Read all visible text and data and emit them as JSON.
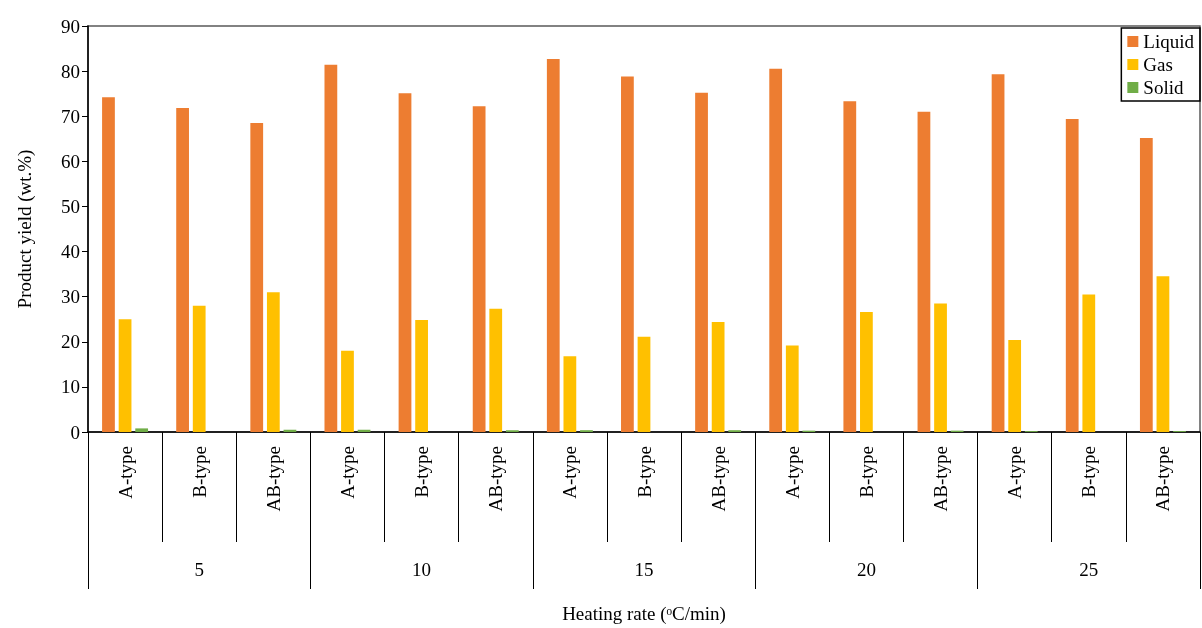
{
  "chart_data": {
    "type": "bar",
    "xlabel": "Heating rate (ᵒC/min)",
    "ylabel": "Product yield (wt.%)",
    "categories": [
      "A-type",
      "B-type",
      "AB-type",
      "A-type",
      "B-type",
      "AB-type",
      "A-type",
      "B-type",
      "AB-type",
      "A-type",
      "B-type",
      "AB-type",
      "A-type",
      "B-type",
      "AB-type"
    ],
    "annotations": [
      "5",
      "10",
      "15",
      "20",
      "25"
    ],
    "series": [
      {
        "name": "Liquid",
        "color": "#ed7d31",
        "values": [
          74.2,
          71.8,
          68.5,
          81.4,
          75.1,
          72.2,
          82.7,
          78.8,
          75.2,
          80.5,
          73.3,
          71.0,
          79.3,
          69.4,
          65.2
        ]
      },
      {
        "name": "Gas",
        "color": "#ffc000",
        "values": [
          25.0,
          28.0,
          31.0,
          18.0,
          24.8,
          27.3,
          16.8,
          21.1,
          24.4,
          19.2,
          26.6,
          28.5,
          20.4,
          30.5,
          34.5
        ]
      },
      {
        "name": "Solid",
        "color": "#70ad47",
        "values": [
          0.8,
          0,
          0.5,
          0.5,
          0,
          0.4,
          0.4,
          0,
          0.4,
          0.3,
          0,
          0.3,
          0.2,
          0,
          0.2
        ]
      }
    ],
    "ylim": [
      0,
      90
    ],
    "yticks": [
      0,
      10,
      20,
      30,
      40,
      50,
      60,
      70,
      80,
      90
    ],
    "grid": false,
    "legend": "top right"
  }
}
